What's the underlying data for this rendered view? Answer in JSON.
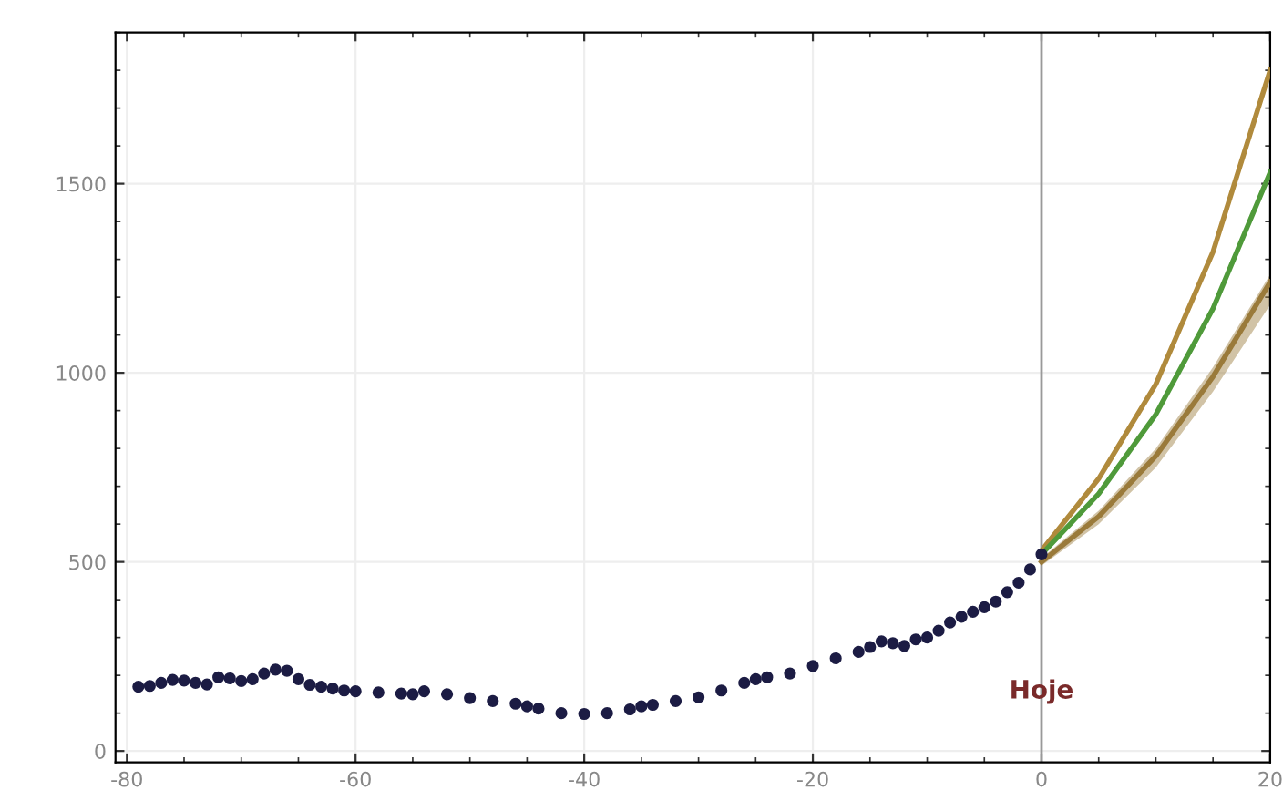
{
  "chart_data": {
    "type": "scatter",
    "xlim": [
      -81,
      20
    ],
    "xticks": [
      -80,
      -60,
      -40,
      -20,
      0,
      20
    ],
    "ylim": [
      -30,
      1900
    ],
    "yticks": [
      0,
      500,
      1000,
      1500
    ],
    "grid": true,
    "legend": false,
    "series": [
      {
        "marker": "circle",
        "color": "#1c1c44",
        "x": [
          -79,
          -78,
          -77,
          -76,
          -75,
          -74,
          -73,
          -72,
          -71,
          -70,
          -69,
          -68,
          -67,
          -66,
          -65,
          -64,
          -63,
          -62,
          -61,
          -60,
          -58,
          -56,
          -55,
          -54,
          -52,
          -50,
          -48,
          -46,
          -45,
          -44,
          -42,
          -40,
          -38,
          -36,
          -35,
          -34,
          -32,
          -30,
          -28,
          -26,
          -25,
          -24,
          -22,
          -20,
          -18,
          -16,
          -15,
          -14,
          -13,
          -12,
          -11,
          -10,
          -9,
          -8,
          -7,
          -6,
          -5,
          -4,
          -3,
          -2,
          -1,
          0
        ],
        "values": [
          170,
          172,
          180,
          188,
          186,
          180,
          176,
          195,
          192,
          185,
          190,
          205,
          215,
          212,
          190,
          175,
          170,
          165,
          160,
          158,
          155,
          152,
          150,
          158,
          150,
          140,
          132,
          125,
          118,
          112,
          100,
          98,
          100,
          110,
          118,
          122,
          132,
          142,
          160,
          180,
          190,
          195,
          205,
          225,
          245,
          262,
          275,
          290,
          285,
          278,
          295,
          300,
          318,
          340,
          355,
          368,
          380,
          395,
          420,
          445,
          480,
          520
        ]
      },
      {
        "type": "line",
        "color": "#b08a3c",
        "x": [
          0,
          5,
          10,
          15,
          20
        ],
        "values": [
          530,
          720,
          970,
          1320,
          1800
        ]
      },
      {
        "type": "line",
        "color": "#4f9a3a",
        "x": [
          0,
          5,
          10,
          15,
          20
        ],
        "values": [
          520,
          680,
          890,
          1170,
          1530
        ]
      },
      {
        "type": "line",
        "color": "#9a7a3a",
        "x": [
          0,
          5,
          10,
          15,
          20
        ],
        "values": [
          500,
          620,
          780,
          990,
          1240
        ],
        "lower": [
          490,
          600,
          750,
          950,
          1180
        ],
        "upper": [
          510,
          635,
          800,
          1015,
          1260
        ]
      }
    ],
    "ref_lines": [
      {
        "axis": "x",
        "value": 0,
        "label": "Hoje",
        "color": "#999999"
      }
    ]
  }
}
